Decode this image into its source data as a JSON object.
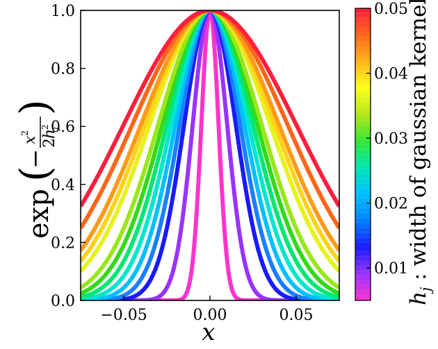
{
  "chart_data": {
    "type": "line",
    "title": "",
    "xlabel": "x",
    "ylabel_parts": {
      "func": "exp",
      "num": "x",
      "num_sup": "2",
      "den_coef": "2",
      "den_var": "h",
      "den_sub": "j",
      "den_sup": "2"
    },
    "xlim": [
      -0.075,
      0.075
    ],
    "ylim": [
      0.0,
      1.0
    ],
    "xticks": [
      {
        "value": -0.05,
        "label": "−0.05"
      },
      {
        "value": 0.0,
        "label": "0.00"
      },
      {
        "value": 0.05,
        "label": "0.05"
      }
    ],
    "yticks": [
      {
        "value": 0.0,
        "label": "0.0"
      },
      {
        "value": 0.2,
        "label": "0.2"
      },
      {
        "value": 0.4,
        "label": "0.4"
      },
      {
        "value": 0.6,
        "label": "0.6"
      },
      {
        "value": 0.8,
        "label": "0.8"
      },
      {
        "value": 1.0,
        "label": "1.0"
      }
    ],
    "function": "exp(-x^2 / (2 h_j^2))",
    "series": [
      {
        "h": 0.005,
        "color": "#ff33cc"
      },
      {
        "h": 0.01,
        "color": "#9933ff"
      },
      {
        "h": 0.015,
        "color": "#1a1aff"
      },
      {
        "h": 0.0175,
        "color": "#1a80ff"
      },
      {
        "h": 0.02,
        "color": "#00bfff"
      },
      {
        "h": 0.0225,
        "color": "#00e6cc"
      },
      {
        "h": 0.025,
        "color": "#00e673"
      },
      {
        "h": 0.0275,
        "color": "#33d91a"
      },
      {
        "h": 0.03,
        "color": "#99e61a"
      },
      {
        "h": 0.035,
        "color": "#e6f21a"
      },
      {
        "h": 0.0375,
        "color": "#ffd21a"
      },
      {
        "h": 0.04,
        "color": "#ff9a1a"
      },
      {
        "h": 0.045,
        "color": "#ff661a"
      },
      {
        "h": 0.05,
        "color": "#ff1f3d"
      }
    ],
    "colorbar": {
      "label_var": "h",
      "label_sub": "j",
      "label_text": " : width of gaussian kernel",
      "range": [
        0.005,
        0.05
      ],
      "ticks": [
        {
          "value": 0.01,
          "label": "0.01"
        },
        {
          "value": 0.02,
          "label": "0.02"
        },
        {
          "value": 0.03,
          "label": "0.03"
        },
        {
          "value": 0.04,
          "label": "0.04"
        },
        {
          "value": 0.05,
          "label": "0.05"
        }
      ],
      "stops": [
        "#ff33cc",
        "#9933ff",
        "#1a1aff",
        "#0080ff",
        "#00bfff",
        "#00e6b3",
        "#33e633",
        "#b3e61a",
        "#ffff1a",
        "#ffb31a",
        "#ff661a",
        "#ff1f3d"
      ]
    }
  }
}
